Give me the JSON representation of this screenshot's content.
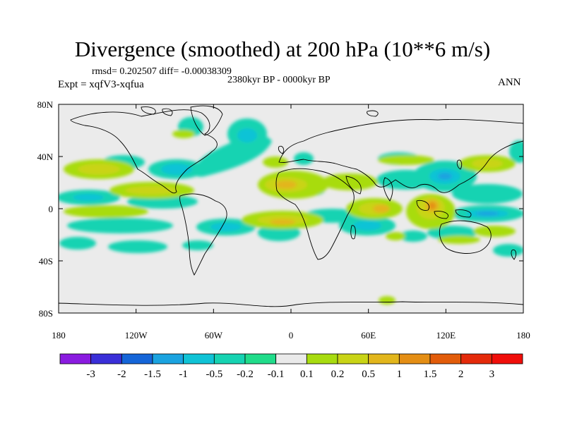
{
  "title": "Divergence (smoothed) at 200 hPa (10**6 m/s)",
  "stats": "rmsd= 0.202507  diff= -0.00038309",
  "period": "2380kyr BP - 0000kyr BP",
  "experiment": "Expt = xqfV3-xqfua",
  "season": "ANN",
  "map": {
    "lat_ticks": [
      "80N",
      "40N",
      "0",
      "40S",
      "80S"
    ],
    "lon_ticks": [
      "180",
      "120W",
      "60W",
      "0",
      "60E",
      "120E",
      "180"
    ],
    "background_color": "#ebebeb"
  },
  "colorbar": {
    "labels": [
      "-3",
      "-2",
      "-1.5",
      "-1",
      "-0.5",
      "-0.2",
      "-0.1",
      "0.1",
      "0.2",
      "0.5",
      "1",
      "1.5",
      "2",
      "3"
    ],
    "colors": [
      "#8a1be0",
      "#3a2fd8",
      "#1565d8",
      "#1aa3e0",
      "#10c3d6",
      "#16d3b2",
      "#20dc8a",
      "#eaeaea",
      "#a8dc10",
      "#c9d416",
      "#e2b61c",
      "#e48e14",
      "#e25c0a",
      "#e42a0a",
      "#f00e0a"
    ]
  }
}
